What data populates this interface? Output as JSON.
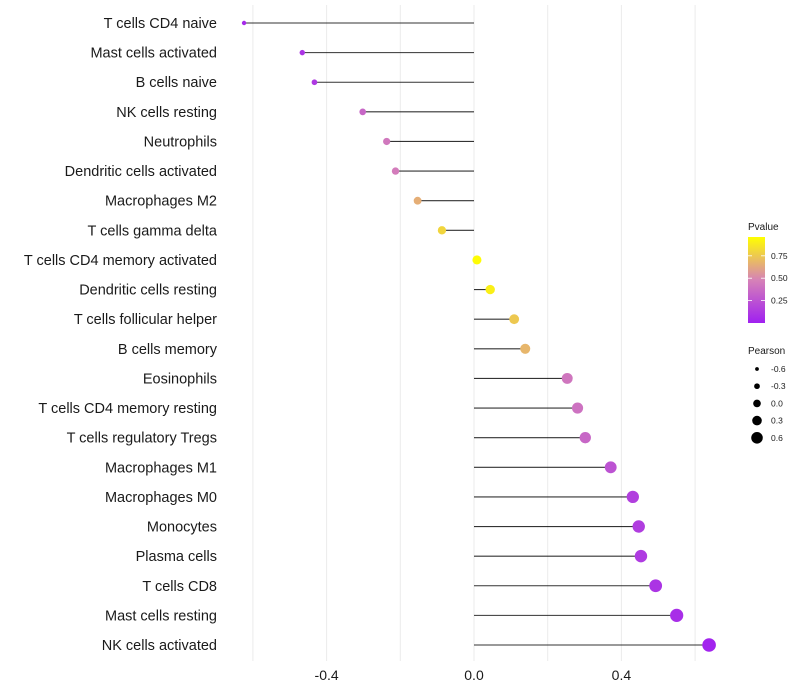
{
  "chart_data": {
    "type": "lollipop",
    "title": "",
    "xlabel": "",
    "ylabel": "",
    "xlim": [
      -0.68,
      0.7
    ],
    "x_ticks": [
      -0.4,
      0.0,
      0.4
    ],
    "x_tick_labels": [
      "-0.4",
      "0.0",
      "0.4"
    ],
    "x_minor_grid": [
      -0.6,
      -0.2,
      0.2,
      0.6
    ],
    "grid": true,
    "categories": [
      "T cells CD4 naive",
      "Mast cells activated",
      "B cells naive",
      "NK cells resting",
      "Neutrophils",
      "Dendritic cells activated",
      "Macrophages M2",
      "T cells gamma delta",
      "T cells CD4 memory activated",
      "Dendritic cells resting",
      "T cells follicular helper",
      "B cells memory",
      "Eosinophils",
      "T cells CD4 memory resting",
      "T cells regulatory  Tregs",
      "Macrophages M1",
      "Macrophages M0",
      "Monocytes",
      "Plasma cells",
      "T cells CD8",
      "Mast cells resting",
      "NK cells activated"
    ],
    "pearson": [
      -0.624,
      -0.466,
      -0.433,
      -0.302,
      -0.237,
      -0.213,
      -0.153,
      -0.087,
      0.008,
      0.044,
      0.109,
      0.139,
      0.253,
      0.281,
      0.302,
      0.371,
      0.431,
      0.447,
      0.453,
      0.493,
      0.55,
      0.638
    ],
    "pvalue": [
      0.05,
      0.1,
      0.12,
      0.35,
      0.43,
      0.45,
      0.65,
      0.8,
      0.95,
      0.9,
      0.75,
      0.68,
      0.42,
      0.4,
      0.35,
      0.25,
      0.15,
      0.14,
      0.13,
      0.1,
      0.07,
      0.02
    ],
    "color_legend": {
      "title": "Pvalue",
      "low_color": "#A020F0",
      "mid_color": "#D682B7",
      "high_color": "#FFFF00",
      "range": [
        0.0,
        0.96
      ],
      "ticks": [
        0.25,
        0.5,
        0.75
      ],
      "tick_labels": [
        "0.25",
        "0.50",
        "0.75"
      ],
      "placement": "right"
    },
    "size_legend": {
      "title": "Pearson",
      "values": [
        -0.6,
        -0.3,
        0.0,
        0.3,
        0.6
      ],
      "labels": [
        "-0.6",
        "-0.3",
        "0.0",
        "0.3",
        "0.6"
      ],
      "placement": "right"
    }
  }
}
